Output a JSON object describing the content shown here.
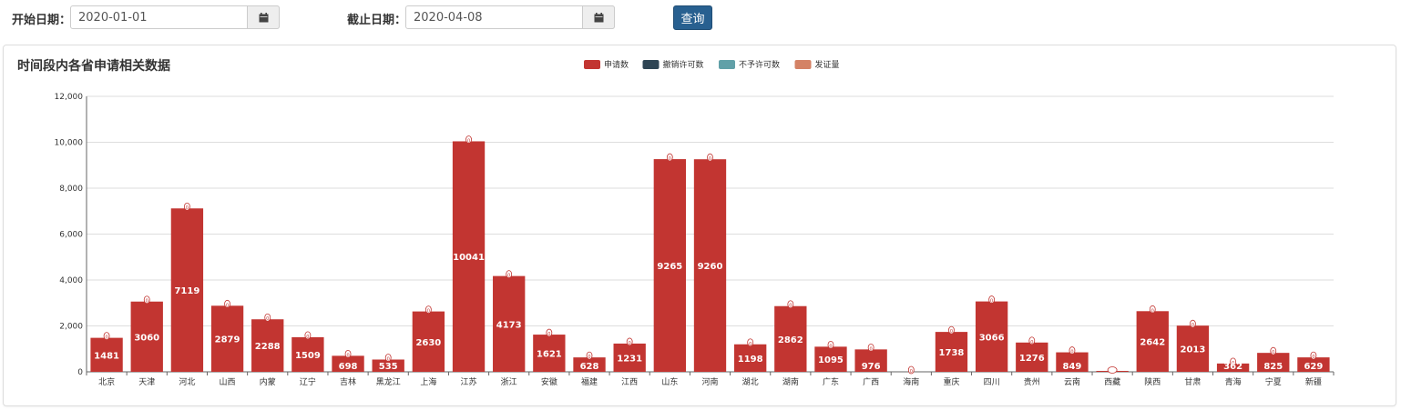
{
  "filters": {
    "start_label": "开始日期：",
    "start_value": "2020-01-01",
    "end_label": "截止日期：",
    "end_value": "2020-04-08",
    "query_label": "查询"
  },
  "panel": {
    "title": "时间段内各省申请相关数据"
  },
  "colors": {
    "s0": "#c23531",
    "s1": "#2f4554",
    "s2": "#61a0a8",
    "s3": "#d48265",
    "grid": "#ddd",
    "axis": "#666"
  },
  "chart_data": {
    "type": "bar",
    "title": "时间段内各省申请相关数据",
    "categories": [
      "北京",
      "天津",
      "河北",
      "山西",
      "内蒙",
      "辽宁",
      "吉林",
      "黑龙江",
      "上海",
      "江苏",
      "浙江",
      "安徽",
      "福建",
      "江西",
      "山东",
      "河南",
      "湖北",
      "湖南",
      "广东",
      "广西",
      "海南",
      "重庆",
      "四川",
      "贵州",
      "云南",
      "西藏",
      "陕西",
      "甘肃",
      "青海",
      "宁夏",
      "新疆"
    ],
    "series": [
      {
        "name": "申请数",
        "values": [
          1481,
          3060,
          7119,
          2879,
          2288,
          1509,
          698,
          535,
          2630,
          10041,
          4173,
          1621,
          628,
          1231,
          9265,
          9260,
          1198,
          2862,
          1095,
          976,
          0,
          1738,
          3066,
          1276,
          849,
          null,
          2642,
          2013,
          362,
          825,
          629
        ]
      },
      {
        "name": "撤销许可数",
        "values": [
          0,
          0,
          0,
          0,
          0,
          0,
          0,
          0,
          0,
          0,
          0,
          0,
          0,
          0,
          0,
          0,
          0,
          0,
          0,
          0,
          0,
          0,
          0,
          0,
          0,
          0,
          0,
          0,
          0,
          0,
          0
        ]
      },
      {
        "name": "不予许可数",
        "values": [
          0,
          0,
          0,
          0,
          0,
          0,
          0,
          0,
          0,
          0,
          0,
          0,
          0,
          0,
          0,
          0,
          0,
          0,
          0,
          0,
          0,
          0,
          0,
          0,
          0,
          0,
          0,
          0,
          0,
          0,
          0
        ]
      },
      {
        "name": "发证量",
        "values": [
          0,
          0,
          0,
          0,
          0,
          0,
          0,
          0,
          0,
          0,
          0,
          0,
          0,
          0,
          0,
          0,
          0,
          0,
          0,
          0,
          0,
          0,
          0,
          0,
          0,
          0,
          0,
          0,
          0,
          0,
          0
        ]
      }
    ],
    "yticks": [
      "0",
      "2,000",
      "4,000",
      "6,000",
      "8,000",
      "10,000",
      "12,000"
    ],
    "ylim": [
      0,
      12000
    ],
    "legend_position": "top-center",
    "xlabel": "",
    "ylabel": ""
  }
}
